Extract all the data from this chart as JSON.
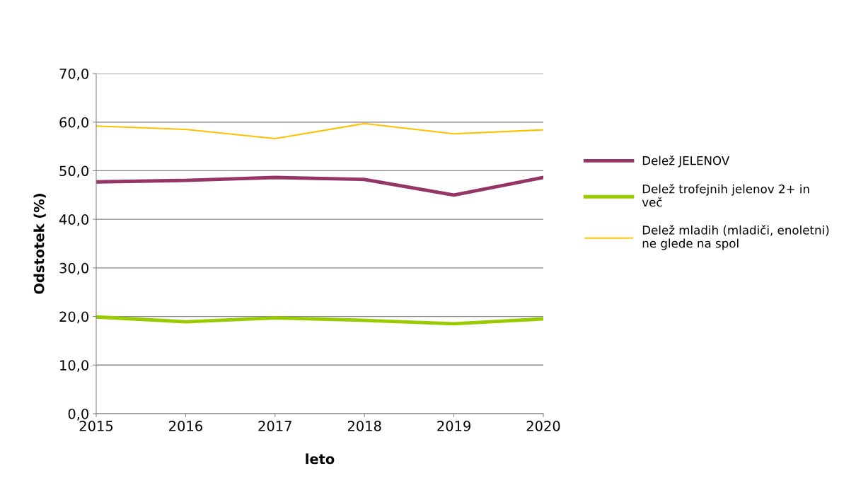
{
  "chart_data": {
    "type": "line",
    "xlabel": "leto",
    "ylabel": "Odstotek (%)",
    "x": [
      2015,
      2016,
      2017,
      2018,
      2019,
      2020
    ],
    "xlim": [
      2015,
      2020
    ],
    "xticks": [
      2015,
      2016,
      2017,
      2018,
      2019,
      2020
    ],
    "ylim": [
      0,
      70
    ],
    "yticks": [
      {
        "value": 0,
        "label": "0,0"
      },
      {
        "value": 10,
        "label": "10,0"
      },
      {
        "value": 20,
        "label": "20,0"
      },
      {
        "value": 30,
        "label": "30,0"
      },
      {
        "value": 40,
        "label": "40,0"
      },
      {
        "value": 50,
        "label": "50,0"
      },
      {
        "value": 60,
        "label": "60,0"
      },
      {
        "value": 70,
        "label": "70,0"
      }
    ],
    "grid": "y",
    "legend": "right",
    "marker": "none",
    "line_style": "solid",
    "series": [
      {
        "name": "Delež JELENOV",
        "color": "#953565",
        "values": [
          47.7,
          48.0,
          48.6,
          48.2,
          45.0,
          48.6
        ]
      },
      {
        "name": "Delež trofejnih jelenov 2+ in več",
        "color": "#99cc00",
        "values": [
          19.9,
          18.9,
          19.7,
          19.2,
          18.5,
          19.5
        ]
      },
      {
        "name": "Delež mladih (mladiči, enoletni) ne glede na spol",
        "color": "#ffc000",
        "values": [
          59.2,
          58.5,
          56.6,
          59.7,
          57.6,
          58.4
        ]
      }
    ]
  }
}
